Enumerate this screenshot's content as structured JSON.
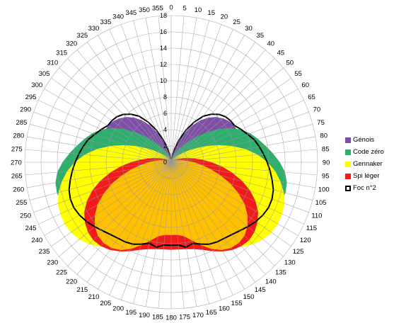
{
  "chart_data": {
    "type": "polar-area",
    "title": "",
    "angle_ticks": [
      0,
      5,
      10,
      15,
      20,
      25,
      30,
      35,
      40,
      45,
      50,
      55,
      60,
      65,
      70,
      75,
      80,
      85,
      90,
      95,
      100,
      105,
      110,
      115,
      120,
      125,
      130,
      135,
      140,
      145,
      150,
      155,
      160,
      165,
      170,
      175,
      180,
      185,
      190,
      195,
      200,
      205,
      210,
      215,
      220,
      225,
      230,
      235,
      240,
      245,
      250,
      255,
      260,
      265,
      270,
      275,
      280,
      285,
      290,
      295,
      300,
      305,
      310,
      315,
      320,
      325,
      330,
      335,
      340,
      345,
      350,
      355
    ],
    "radial_ticks": [
      0,
      2,
      4,
      6,
      8,
      10,
      12,
      14,
      16,
      18
    ],
    "radial_range": [
      0,
      18
    ],
    "angle_step_deg": 5,
    "grid": true,
    "legend_position": "right",
    "series": [
      {
        "name": "Génois",
        "color": "#7F4FA8",
        "fill": true,
        "values": [
          0,
          0.2,
          0.6,
          1.3,
          2.4,
          3.8,
          5.1,
          6.2,
          7.1,
          7.8,
          8.3,
          8.7,
          8.9,
          9,
          8.9,
          8.7,
          8.4,
          8,
          7.5,
          6.9,
          6.2,
          5.4,
          4.6,
          3.8,
          3.1,
          2.4,
          1.9,
          1.4,
          1,
          0.7,
          0.4,
          0.2,
          0.1,
          0,
          0,
          0,
          0,
          0,
          0,
          0,
          0.1,
          0.2,
          0.4,
          0.7,
          1,
          1.4,
          1.9,
          2.4,
          3.1,
          3.8,
          4.6,
          5.4,
          6.2,
          6.9,
          7.5,
          8,
          8.4,
          8.7,
          8.9,
          9,
          8.9,
          8.7,
          8.3,
          7.8,
          7.1,
          6.2,
          5.1,
          3.8,
          2.4,
          1.3,
          0.6,
          0.2
        ]
      },
      {
        "name": "Code zéro",
        "color": "#2EAF6E",
        "fill": true,
        "values": [
          0,
          0,
          0.1,
          0.3,
          0.6,
          1,
          1.6,
          2.3,
          3.2,
          4.3,
          5.6,
          7,
          8.3,
          9.4,
          10.3,
          11,
          11.7,
          12.5,
          13.3,
          14,
          14.4,
          14.5,
          14.3,
          13.8,
          13.1,
          12.3,
          11.4,
          10.5,
          9.6,
          8.7,
          7.9,
          7.2,
          6.6,
          6.2,
          5.9,
          5.8,
          5.8,
          5.8,
          5.9,
          6.2,
          6.6,
          7.2,
          7.9,
          8.7,
          9.6,
          10.5,
          11.4,
          12.3,
          13.1,
          13.8,
          14.3,
          14.5,
          14.4,
          14,
          13.3,
          12.5,
          11.7,
          11,
          10.3,
          9.4,
          8.3,
          7,
          5.6,
          4.3,
          3.2,
          2.3,
          1.6,
          1,
          0.6,
          0.3,
          0.1,
          0
        ]
      },
      {
        "name": "Gennaker",
        "color": "#FFFF00",
        "fill": true,
        "values": [
          0,
          0,
          0,
          0,
          0.1,
          0.2,
          0.3,
          0.5,
          0.7,
          1,
          1.5,
          2.2,
          3.2,
          4.5,
          6,
          7.6,
          9.2,
          10.6,
          11.8,
          12.8,
          13.6,
          14.3,
          14.8,
          15,
          15.1,
          15,
          14.7,
          14.2,
          13.5,
          12.7,
          11.8,
          11,
          10.2,
          9.6,
          9.2,
          9,
          9,
          9,
          9.2,
          9.6,
          10.2,
          11,
          11.8,
          12.7,
          13.5,
          14.2,
          14.7,
          15,
          15.1,
          15,
          14.8,
          14.3,
          13.6,
          12.8,
          11.8,
          10.6,
          9.2,
          7.6,
          6,
          4.5,
          3.2,
          2.2,
          1.5,
          1,
          0.7,
          0.5,
          0.3,
          0.2,
          0.1,
          0,
          0,
          0
        ]
      },
      {
        "name": "Spi léger",
        "color": "#F21A1A",
        "fill": true,
        "values": [
          0,
          0,
          0,
          0,
          0,
          0,
          0,
          0,
          0,
          0.1,
          0.2,
          0.3,
          0.5,
          0.8,
          1.2,
          1.8,
          2.6,
          3.6,
          4.8,
          6.2,
          7.6,
          9,
          10.3,
          11.4,
          12.3,
          12.9,
          13.3,
          13.5,
          13.4,
          13.1,
          12.6,
          12,
          11.4,
          11,
          10.8,
          10.7,
          10.7,
          10.7,
          10.8,
          11,
          11.4,
          12,
          12.6,
          13.1,
          13.4,
          13.5,
          13.3,
          12.9,
          12.3,
          11.4,
          10.3,
          9,
          7.6,
          6.2,
          4.8,
          3.6,
          2.6,
          1.8,
          1.2,
          0.8,
          0.5,
          0.3,
          0.2,
          0.1,
          0,
          0,
          0,
          0,
          0,
          0,
          0,
          0
        ]
      },
      {
        "name": "",
        "color": "#FFC000",
        "fill": true,
        "values": [
          0,
          0,
          0,
          0,
          0,
          0,
          0,
          0,
          0,
          0,
          0,
          0.1,
          0.2,
          0.3,
          0.5,
          0.8,
          1.2,
          1.8,
          2.6,
          3.6,
          4.8,
          6.2,
          7.7,
          9.1,
          10.4,
          11.4,
          12.2,
          12.7,
          12.9,
          12.8,
          12.4,
          11.7,
          10.8,
          9.9,
          9.2,
          8.9,
          8.9,
          8.9,
          9.2,
          9.9,
          10.8,
          11.7,
          12.4,
          12.8,
          12.9,
          12.7,
          12.2,
          11.4,
          10.4,
          9.1,
          7.7,
          6.2,
          4.8,
          3.6,
          2.6,
          1.8,
          1.2,
          0.8,
          0.5,
          0.3,
          0.2,
          0.1,
          0,
          0,
          0,
          0,
          0,
          0,
          0,
          0,
          0,
          0
        ]
      },
      {
        "name": "Foc n°2",
        "color": "#000000",
        "fill": false,
        "values": [
          0,
          0.3,
          0.9,
          1.8,
          3,
          4.4,
          5.7,
          6.9,
          7.7,
          8.3,
          8.7,
          8.9,
          9,
          9.5,
          10,
          10.6,
          11,
          11.4,
          11.8,
          12.2,
          12.6,
          13,
          13.2,
          13.2,
          13,
          12.7,
          12.3,
          11.9,
          11.6,
          11.4,
          11.3,
          11.1,
          10.7,
          10.3,
          10.6,
          10.2,
          10.2,
          10.2,
          10.6,
          10.3,
          10.7,
          11.1,
          11.3,
          11.4,
          11.6,
          11.9,
          12.3,
          12.7,
          13,
          13.2,
          13.2,
          13,
          12.6,
          12.2,
          11.8,
          11.4,
          11,
          10.6,
          10,
          9.5,
          9,
          8.9,
          8.7,
          8.3,
          7.7,
          6.9,
          5.7,
          4.4,
          3,
          1.8,
          0.9,
          0.3
        ]
      }
    ]
  }
}
